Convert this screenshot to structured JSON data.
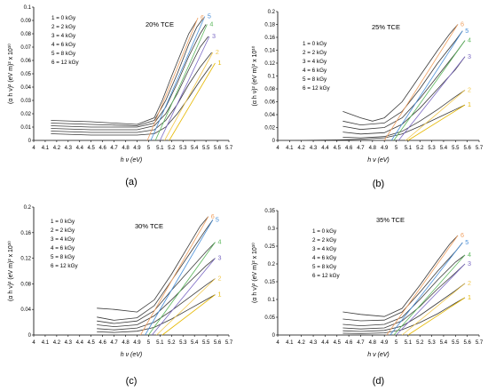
{
  "colors": {
    "data_line": "#3a3a3a",
    "fit_1": "#e6b800",
    "fit_2": "#f2c94c",
    "fit_3": "#7b68c4",
    "fit_4": "#5cb85c",
    "fit_5": "#4a90d9",
    "fit_6": "#f0a060",
    "axis": "#000000"
  },
  "legend_entries": [
    "1 = 0 kGy",
    "2 = 2 kGy",
    "3 = 4 kGy",
    "4 = 6 kGy",
    "5 = 8 kGy",
    "6 = 12 kGy"
  ],
  "curve_labels": [
    "1",
    "2",
    "3",
    "4",
    "5",
    "6"
  ],
  "chart_data": [
    {
      "type": "line",
      "panel_label": "(a)",
      "title": "20% TCE",
      "xlabel": "h ν (eV)",
      "ylabel": "(α h ν)² (eV m)² x 10¹⁰",
      "xlim": [
        4,
        5.7
      ],
      "ylim": [
        0,
        0.1
      ],
      "xticks": [
        "4",
        "4.1",
        "4.2",
        "4.3",
        "4.4",
        "4.5",
        "4.6",
        "4.7",
        "4.8",
        "4.9",
        "5",
        "5.1",
        "5.2",
        "5.3",
        "5.4",
        "5.5",
        "5.6",
        "5.7"
      ],
      "yticks": [
        "0",
        "0.01",
        "0.02",
        "0.03",
        "0.04",
        "0.05",
        "0.06",
        "0.07",
        "0.08",
        "0.09",
        "0.1"
      ],
      "legend_position": "top-left",
      "series": [
        {
          "label": "1",
          "x": [
            4.15,
            4.5,
            4.9,
            5.05,
            5.15,
            5.25,
            5.35,
            5.45,
            5.55
          ],
          "y": [
            0.005,
            0.004,
            0.004,
            0.005,
            0.01,
            0.02,
            0.032,
            0.045,
            0.057
          ]
        },
        {
          "label": "2",
          "x": [
            4.15,
            4.5,
            4.9,
            5.05,
            5.15,
            5.25,
            5.35,
            5.45,
            5.55
          ],
          "y": [
            0.007,
            0.006,
            0.006,
            0.008,
            0.015,
            0.027,
            0.042,
            0.055,
            0.066
          ]
        },
        {
          "label": "3",
          "x": [
            4.15,
            4.5,
            4.9,
            5.05,
            5.15,
            5.25,
            5.35,
            5.45,
            5.52
          ],
          "y": [
            0.009,
            0.008,
            0.008,
            0.011,
            0.02,
            0.035,
            0.053,
            0.07,
            0.078
          ]
        },
        {
          "label": "4",
          "x": [
            4.15,
            4.5,
            4.9,
            5.05,
            5.15,
            5.25,
            5.35,
            5.45,
            5.5
          ],
          "y": [
            0.011,
            0.01,
            0.01,
            0.013,
            0.025,
            0.043,
            0.063,
            0.08,
            0.087
          ]
        },
        {
          "label": "5",
          "x": [
            4.15,
            4.5,
            4.9,
            5.05,
            5.15,
            5.25,
            5.35,
            5.42,
            5.48
          ],
          "y": [
            0.013,
            0.012,
            0.011,
            0.015,
            0.03,
            0.05,
            0.072,
            0.085,
            0.092
          ]
        },
        {
          "label": "6",
          "x": [
            4.15,
            4.5,
            4.9,
            5.05,
            5.12,
            5.2,
            5.28,
            5.35,
            5.42
          ],
          "y": [
            0.015,
            0.014,
            0.012,
            0.017,
            0.03,
            0.048,
            0.065,
            0.08,
            0.09
          ]
        }
      ],
      "fit_lines": [
        {
          "label": "1",
          "x": [
            5.18,
            5.58
          ],
          "y": [
            0,
            0.058
          ]
        },
        {
          "label": "2",
          "x": [
            5.14,
            5.56
          ],
          "y": [
            0,
            0.066
          ]
        },
        {
          "label": "3",
          "x": [
            5.1,
            5.53
          ],
          "y": [
            0,
            0.078
          ]
        },
        {
          "label": "4",
          "x": [
            5.06,
            5.51
          ],
          "y": [
            0,
            0.087
          ]
        },
        {
          "label": "5",
          "x": [
            5.02,
            5.49
          ],
          "y": [
            0,
            0.093
          ]
        },
        {
          "label": "6",
          "x": [
            4.99,
            5.43
          ],
          "y": [
            0,
            0.092
          ]
        }
      ]
    },
    {
      "type": "line",
      "panel_label": "(b)",
      "title": "25% TCE",
      "xlabel": "h ν (eV)",
      "ylabel": "(α h ν)² (eV m)² x 10¹⁰",
      "xlim": [
        4,
        5.7
      ],
      "ylim": [
        0,
        0.2
      ],
      "xticks": [
        "4",
        "4.1",
        "4.2",
        "4.3",
        "4.4",
        "4.5",
        "4.6",
        "4.7",
        "4.8",
        "4.9",
        "5",
        "5.1",
        "5.2",
        "5.3",
        "5.4",
        "5.5",
        "5.6",
        "5.7"
      ],
      "yticks": [
        "0",
        "0.02",
        "0.04",
        "0.06",
        "0.08",
        "0.1",
        "0.12",
        "0.14",
        "0.16",
        "0.18",
        "0.2"
      ],
      "legend_position": "right",
      "series": [
        {
          "label": "1",
          "x": [
            4.15,
            4.55,
            4.7,
            4.9,
            5.05,
            5.2,
            5.35,
            5.5,
            5.58
          ],
          "y": [
            0.0,
            0.001,
            0.002,
            0.004,
            0.01,
            0.022,
            0.035,
            0.048,
            0.055
          ]
        },
        {
          "label": "2",
          "x": [
            4.55,
            4.7,
            4.9,
            5.05,
            5.2,
            5.35,
            5.5,
            5.58
          ],
          "y": [
            0.005,
            0.004,
            0.006,
            0.014,
            0.03,
            0.048,
            0.068,
            0.078
          ]
        },
        {
          "label": "3",
          "x": [
            4.55,
            4.7,
            4.9,
            5.05,
            5.2,
            5.35,
            5.5,
            5.58
          ],
          "y": [
            0.013,
            0.01,
            0.012,
            0.025,
            0.05,
            0.08,
            0.11,
            0.13
          ]
        },
        {
          "label": "4",
          "x": [
            4.55,
            4.7,
            4.9,
            5.05,
            5.2,
            5.35,
            5.5,
            5.58
          ],
          "y": [
            0.022,
            0.017,
            0.02,
            0.035,
            0.065,
            0.1,
            0.135,
            0.155
          ]
        },
        {
          "label": "5",
          "x": [
            4.55,
            4.7,
            4.9,
            5.05,
            5.2,
            5.35,
            5.5,
            5.56
          ],
          "y": [
            0.03,
            0.024,
            0.027,
            0.045,
            0.08,
            0.12,
            0.155,
            0.17
          ]
        },
        {
          "label": "6",
          "x": [
            4.55,
            4.7,
            4.8,
            4.9,
            5.05,
            5.2,
            5.35,
            5.45,
            5.52
          ],
          "y": [
            0.045,
            0.035,
            0.03,
            0.035,
            0.06,
            0.1,
            0.14,
            0.165,
            0.18
          ]
        }
      ],
      "fit_lines": [
        {
          "label": "1",
          "x": [
            5.1,
            5.58
          ],
          "y": [
            0,
            0.055
          ]
        },
        {
          "label": "2",
          "x": [
            5.08,
            5.58
          ],
          "y": [
            0,
            0.078
          ]
        },
        {
          "label": "3",
          "x": [
            5.02,
            5.58
          ],
          "y": [
            0,
            0.13
          ]
        },
        {
          "label": "4",
          "x": [
            4.98,
            5.58
          ],
          "y": [
            0,
            0.155
          ]
        },
        {
          "label": "5",
          "x": [
            4.96,
            5.56
          ],
          "y": [
            0,
            0.17
          ]
        },
        {
          "label": "6",
          "x": [
            4.9,
            5.52
          ],
          "y": [
            0,
            0.18
          ]
        }
      ]
    },
    {
      "type": "line",
      "panel_label": "(c)",
      "title": "30% TCE",
      "xlabel": "h ν (eV)",
      "ylabel": "(α h ν)² (eV m)² x 10¹⁰",
      "xlim": [
        4,
        5.7
      ],
      "ylim": [
        0,
        0.2
      ],
      "xticks": [
        "4",
        "4.1",
        "4.2",
        "4.3",
        "4.4",
        "4.5",
        "4.6",
        "4.7",
        "4.8",
        "4.9",
        "5",
        "5.1",
        "5.2",
        "5.3",
        "5.4",
        "5.5",
        "5.6",
        "5.7"
      ],
      "yticks": [
        "0",
        "0.04",
        "0.08",
        "0.12",
        "0.16",
        "0.2"
      ],
      "legend_position": "top-left",
      "series": [
        {
          "label": "1",
          "x": [
            4.55,
            4.7,
            4.9,
            5.05,
            5.2,
            5.35,
            5.5,
            5.58
          ],
          "y": [
            0.005,
            0.004,
            0.006,
            0.012,
            0.025,
            0.04,
            0.055,
            0.063
          ]
        },
        {
          "label": "2",
          "x": [
            4.55,
            4.7,
            4.9,
            5.05,
            5.2,
            5.35,
            5.5,
            5.58
          ],
          "y": [
            0.01,
            0.008,
            0.011,
            0.02,
            0.038,
            0.058,
            0.078,
            0.088
          ]
        },
        {
          "label": "3",
          "x": [
            4.55,
            4.7,
            4.9,
            5.05,
            5.2,
            5.35,
            5.5,
            5.58
          ],
          "y": [
            0.016,
            0.013,
            0.016,
            0.03,
            0.055,
            0.082,
            0.108,
            0.12
          ]
        },
        {
          "label": "4",
          "x": [
            4.55,
            4.7,
            4.9,
            5.05,
            5.2,
            5.35,
            5.5,
            5.58
          ],
          "y": [
            0.022,
            0.018,
            0.022,
            0.038,
            0.07,
            0.1,
            0.13,
            0.145
          ]
        },
        {
          "label": "5",
          "x": [
            4.55,
            4.7,
            4.9,
            5.05,
            5.2,
            5.35,
            5.5,
            5.56
          ],
          "y": [
            0.028,
            0.023,
            0.027,
            0.046,
            0.085,
            0.125,
            0.165,
            0.18
          ]
        },
        {
          "label": "6",
          "x": [
            4.55,
            4.7,
            4.9,
            5.05,
            5.2,
            5.35,
            5.45,
            5.52
          ],
          "y": [
            0.042,
            0.04,
            0.036,
            0.055,
            0.095,
            0.14,
            0.17,
            0.185
          ]
        }
      ],
      "fit_lines": [
        {
          "label": "1",
          "x": [
            5.12,
            5.58
          ],
          "y": [
            0,
            0.063
          ]
        },
        {
          "label": "2",
          "x": [
            5.07,
            5.58
          ],
          "y": [
            0,
            0.088
          ]
        },
        {
          "label": "3",
          "x": [
            5.03,
            5.58
          ],
          "y": [
            0,
            0.12
          ]
        },
        {
          "label": "4",
          "x": [
            5.0,
            5.58
          ],
          "y": [
            0,
            0.145
          ]
        },
        {
          "label": "5",
          "x": [
            4.97,
            5.56
          ],
          "y": [
            0,
            0.18
          ]
        },
        {
          "label": "6",
          "x": [
            4.93,
            5.52
          ],
          "y": [
            0,
            0.185
          ]
        }
      ]
    },
    {
      "type": "line",
      "panel_label": "(d)",
      "title": "35% TCE",
      "xlabel": "h ν (eV)",
      "ylabel": "(α h ν)² (eV m)² x 10¹⁰",
      "xlim": [
        4,
        5.7
      ],
      "ylim": [
        0,
        0.35
      ],
      "xticks": [
        "4",
        "4.1",
        "4.2",
        "4.3",
        "4.4",
        "4.5",
        "4.6",
        "4.7",
        "4.8",
        "4.9",
        "5",
        "5.1",
        "5.2",
        "5.3",
        "5.4",
        "5.5",
        "5.6",
        "5.7"
      ],
      "yticks": [
        "0",
        "0.05",
        "0.1",
        "0.15",
        "0.2",
        "0.25",
        "0.3",
        "0.35"
      ],
      "legend_position": "top-left",
      "series": [
        {
          "label": "1",
          "x": [
            4.55,
            4.7,
            4.9,
            5.05,
            5.2,
            5.35,
            5.5,
            5.58
          ],
          "y": [
            0.005,
            0.004,
            0.006,
            0.015,
            0.035,
            0.06,
            0.09,
            0.105
          ]
        },
        {
          "label": "2",
          "x": [
            4.55,
            4.7,
            4.9,
            5.05,
            5.2,
            5.35,
            5.5,
            5.58
          ],
          "y": [
            0.012,
            0.01,
            0.013,
            0.025,
            0.055,
            0.09,
            0.125,
            0.145
          ]
        },
        {
          "label": "3",
          "x": [
            4.55,
            4.7,
            4.9,
            5.05,
            5.2,
            5.35,
            5.5,
            5.58
          ],
          "y": [
            0.02,
            0.017,
            0.02,
            0.04,
            0.08,
            0.13,
            0.175,
            0.2
          ]
        },
        {
          "label": "4",
          "x": [
            4.55,
            4.7,
            4.9,
            5.05,
            5.2,
            5.35,
            5.5,
            5.58
          ],
          "y": [
            0.03,
            0.026,
            0.03,
            0.05,
            0.1,
            0.155,
            0.205,
            0.225
          ]
        },
        {
          "label": "5",
          "x": [
            4.55,
            4.7,
            4.9,
            5.05,
            5.2,
            5.35,
            5.5,
            5.56
          ],
          "y": [
            0.045,
            0.04,
            0.042,
            0.065,
            0.12,
            0.18,
            0.235,
            0.26
          ]
        },
        {
          "label": "6",
          "x": [
            4.55,
            4.7,
            4.9,
            5.05,
            5.2,
            5.35,
            5.45,
            5.52
          ],
          "y": [
            0.065,
            0.058,
            0.052,
            0.075,
            0.14,
            0.21,
            0.255,
            0.28
          ]
        }
      ],
      "fit_lines": [
        {
          "label": "1",
          "x": [
            5.1,
            5.58
          ],
          "y": [
            0,
            0.105
          ]
        },
        {
          "label": "2",
          "x": [
            5.05,
            5.58
          ],
          "y": [
            0,
            0.145
          ]
        },
        {
          "label": "3",
          "x": [
            5.0,
            5.58
          ],
          "y": [
            0,
            0.2
          ]
        },
        {
          "label": "4",
          "x": [
            4.98,
            5.58
          ],
          "y": [
            0,
            0.225
          ]
        },
        {
          "label": "5",
          "x": [
            4.95,
            5.56
          ],
          "y": [
            0,
            0.26
          ]
        },
        {
          "label": "6",
          "x": [
            4.92,
            5.52
          ],
          "y": [
            0,
            0.28
          ]
        }
      ]
    }
  ]
}
